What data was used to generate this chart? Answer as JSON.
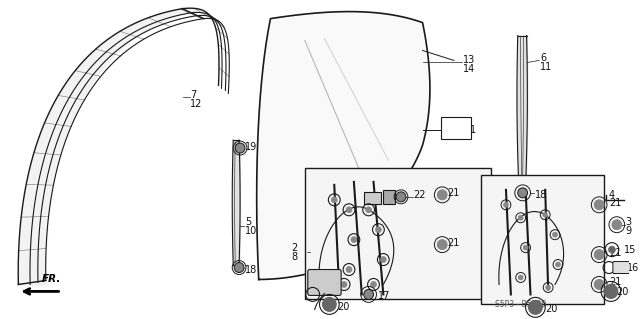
{
  "bg_color": "#ffffff",
  "line_color": "#1a1a1a",
  "text_color": "#111111",
  "fig_width": 6.4,
  "fig_height": 3.19,
  "dpi": 100,
  "watermark_text": "S5P3 - B5300",
  "fr_label": "FR."
}
